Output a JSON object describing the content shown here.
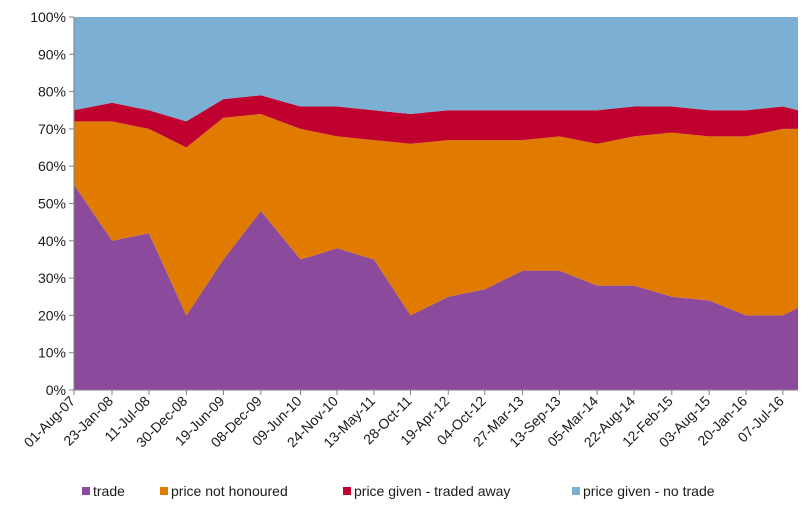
{
  "chart_data": {
    "type": "area",
    "stacking": "percent",
    "ylim": [
      0,
      100
    ],
    "y_ticks": [
      "0%",
      "10%",
      "20%",
      "30%",
      "40%",
      "50%",
      "60%",
      "70%",
      "80%",
      "90%",
      "100%"
    ],
    "x_ticks": [
      "01-Aug-07",
      "23-Jan-08",
      "11-Jul-08",
      "30-Dec-08",
      "19-Jun-09",
      "08-Dec-09",
      "09-Jun-10",
      "24-Nov-10",
      "13-May-11",
      "28-Oct-11",
      "19-Apr-12",
      "04-Oct-12",
      "27-Mar-13",
      "13-Sep-13",
      "05-Mar-14",
      "22-Aug-14",
      "12-Feb-15",
      "03-Aug-15",
      "20-Jan-16",
      "07-Jul-16"
    ],
    "x_range": [
      "2007-08-01",
      "2016-09-15"
    ],
    "grid": false,
    "legend_position": "bottom",
    "series_note_x": "approximate percentage shares read at each labelled date (stacked, sum to 100%)",
    "x": [
      "2007-08-01",
      "2008-01-23",
      "2008-07-11",
      "2008-12-30",
      "2009-06-19",
      "2009-12-08",
      "2010-06-09",
      "2010-11-24",
      "2011-05-13",
      "2011-10-28",
      "2012-04-19",
      "2012-10-04",
      "2013-03-27",
      "2013-09-13",
      "2014-03-05",
      "2014-08-22",
      "2015-02-12",
      "2015-08-03",
      "2016-01-20",
      "2016-07-07",
      "2016-09-15"
    ],
    "series": [
      {
        "name": "trade",
        "color": "#8B4A9C",
        "values": [
          55,
          40,
          42,
          20,
          35,
          48,
          35,
          38,
          35,
          20,
          25,
          27,
          32,
          32,
          28,
          28,
          25,
          24,
          20,
          20,
          22
        ]
      },
      {
        "name": "price not honoured",
        "color": "#E07B00",
        "values": [
          17,
          32,
          28,
          45,
          38,
          26,
          35,
          30,
          32,
          46,
          42,
          40,
          35,
          36,
          38,
          40,
          44,
          44,
          48,
          50,
          48
        ]
      },
      {
        "name": "price given - traded away",
        "color": "#C0002F",
        "values": [
          3,
          5,
          5,
          7,
          5,
          5,
          6,
          8,
          8,
          8,
          8,
          8,
          8,
          7,
          9,
          8,
          7,
          7,
          7,
          6,
          5
        ]
      },
      {
        "name": "price given - no trade",
        "color": "#7BAFD4",
        "values": [
          25,
          23,
          25,
          28,
          22,
          21,
          24,
          24,
          25,
          26,
          25,
          25,
          25,
          25,
          25,
          24,
          24,
          25,
          25,
          24,
          25
        ]
      }
    ]
  }
}
